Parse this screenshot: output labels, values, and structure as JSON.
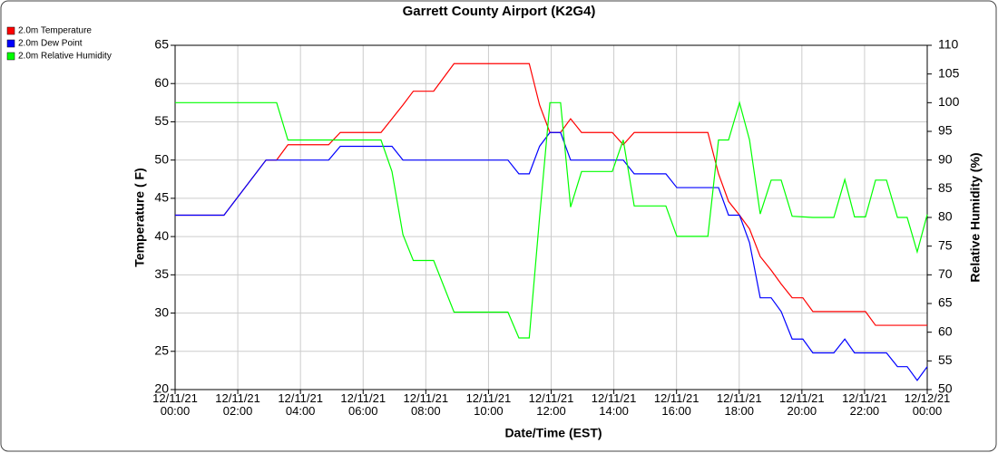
{
  "chart_data": {
    "type": "line",
    "title": "Garrett County Airport (K2G4)",
    "x_label": "Date/Time (EST)",
    "y_label": "Temperature ( F)",
    "y2_label": "Relative Humidity (%)",
    "legend": "top-left",
    "grid": true,
    "x": [
      0,
      1.56,
      2.9,
      3.24,
      3.6,
      4.9,
      5.27,
      6.57,
      6.92,
      7.27,
      7.6,
      8.25,
      8.9,
      10.62,
      10.97,
      11.3,
      11.63,
      11.96,
      12.3,
      12.62,
      12.97,
      13.95,
      14.3,
      14.65,
      15.66,
      16.01,
      17.0,
      17.34,
      17.66,
      18.01,
      18.33,
      18.67,
      19.02,
      19.34,
      19.69,
      20.03,
      20.35,
      21.02,
      21.37,
      21.68,
      22.03,
      22.35,
      22.7,
      23.05,
      23.36,
      23.68,
      24
    ],
    "xlim": [
      0,
      24
    ],
    "xticks": [
      {
        "value": 0,
        "label": "12/11/21\n00:00"
      },
      {
        "value": 2,
        "label": "12/11/21\n02:00"
      },
      {
        "value": 4,
        "label": "12/11/21\n04:00"
      },
      {
        "value": 6,
        "label": "12/11/21\n06:00"
      },
      {
        "value": 8,
        "label": "12/11/21\n08:00"
      },
      {
        "value": 10,
        "label": "12/11/21\n10:00"
      },
      {
        "value": 12,
        "label": "12/11/21\n12:00"
      },
      {
        "value": 14,
        "label": "12/11/21\n14:00"
      },
      {
        "value": 16,
        "label": "12/11/21\n16:00"
      },
      {
        "value": 18,
        "label": "12/11/21\n18:00"
      },
      {
        "value": 20,
        "label": "12/11/21\n20:00"
      },
      {
        "value": 22,
        "label": "12/11/21\n22:00"
      },
      {
        "value": 24,
        "label": "12/12/21\n00:00"
      }
    ],
    "ylim": [
      20,
      65
    ],
    "yticks": [
      20,
      25,
      30,
      35,
      40,
      45,
      50,
      55,
      60,
      65
    ],
    "y2lim": [
      50,
      110
    ],
    "y2ticks": [
      50,
      55,
      60,
      65,
      70,
      75,
      80,
      85,
      90,
      95,
      100,
      105,
      110
    ],
    "series": [
      {
        "name": "2.0m Temperature",
        "color": "#ff0000",
        "values": [
          42.8,
          42.8,
          50,
          50,
          52,
          52,
          53.6,
          53.6,
          55.4,
          57.2,
          59,
          59,
          62.6,
          62.6,
          62.6,
          62.6,
          57.2,
          53.6,
          53.6,
          55.4,
          53.6,
          53.6,
          52,
          53.6,
          53.6,
          53.6,
          53.6,
          48.2,
          44.6,
          42.8,
          41,
          37.4,
          35.6,
          33.8,
          32,
          32,
          30.2,
          30.2,
          30.2,
          30.2,
          30.2,
          28.4,
          28.4,
          28.4,
          28.4,
          28.4,
          28.4
        ]
      },
      {
        "name": "2.0m Dew Point",
        "color": "#0000ff",
        "values": [
          42.8,
          42.8,
          50,
          50,
          50,
          50,
          51.8,
          51.8,
          51.8,
          50,
          50,
          50,
          50,
          50,
          48.2,
          48.2,
          51.8,
          53.6,
          53.6,
          50,
          50,
          50,
          50,
          48.2,
          48.2,
          46.4,
          46.4,
          46.4,
          42.8,
          42.8,
          39.2,
          32,
          32,
          30.2,
          26.6,
          26.6,
          24.8,
          24.8,
          26.6,
          24.8,
          24.8,
          24.8,
          24.8,
          23,
          23,
          21.2,
          23
        ]
      },
      {
        "name": "2.0m Relative Humidity",
        "color": "#00ff00",
        "axis": "y2",
        "values": [
          100,
          100,
          100,
          100,
          93.5,
          93.5,
          93.5,
          93.5,
          88,
          77,
          72.5,
          72.5,
          63.5,
          63.5,
          59,
          59,
          80,
          100,
          100,
          81.8,
          88,
          88,
          93.5,
          82,
          82,
          76.7,
          76.7,
          93.5,
          93.5,
          100,
          93.5,
          80.6,
          86.5,
          86.5,
          80.2,
          80.1,
          80,
          80,
          86.6,
          80.1,
          80.1,
          86.5,
          86.5,
          80,
          80,
          74,
          80.5
        ]
      }
    ]
  }
}
